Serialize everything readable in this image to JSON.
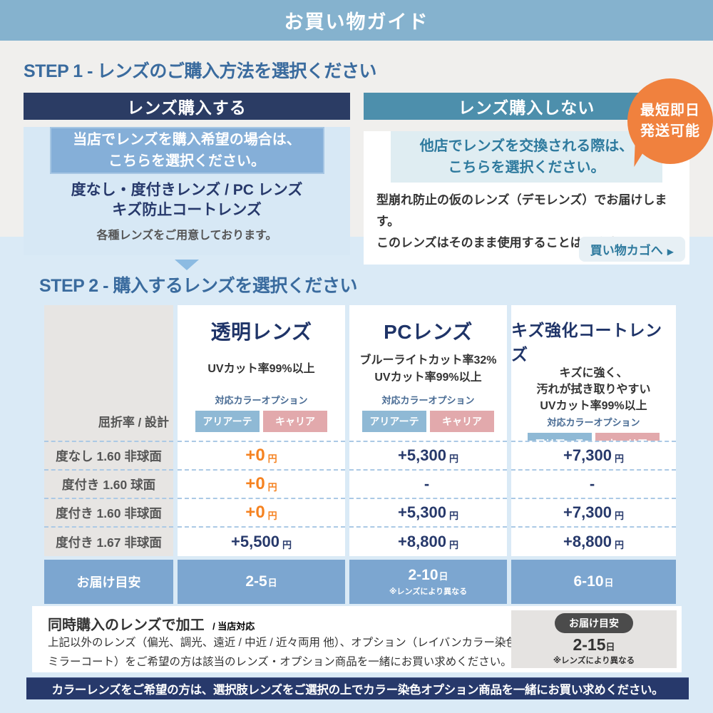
{
  "header": {
    "title": "お買い物ガイド"
  },
  "step1": {
    "heading": "STEP 1 - レンズのご購入方法を選択ください",
    "left": {
      "title": "レンズ購入する",
      "highlight_line1": "当店でレンズを購入希望の場合は、",
      "highlight_line2": "こちらを選択ください。",
      "lens_line1": "度なし・度付きレンズ / PC レンズ",
      "lens_line2": "キズ防止コートレンズ",
      "note": "各種レンズをご用意しております。"
    },
    "right": {
      "title": "レンズ購入しない",
      "highlight_line1": "他店でレンズを交換される際は、",
      "highlight_line2": "こちらを選択ください。",
      "desc_line1": "型崩れ防止の仮のレンズ（デモレンズ）でお届けします。",
      "desc_line2": "このレンズはそのまま使用することはできません。",
      "cart_link": "買い物カゴへ",
      "cart_arrow": "▶"
    },
    "badge": {
      "line1": "最短即日",
      "line2": "発送可能"
    }
  },
  "step2": {
    "heading": "STEP 2 - 購入するレンズを選択ください",
    "table": {
      "corner_label": "屈折率 / 設計",
      "options_label": "対応カラーオプション",
      "chip1": "アリアーテ",
      "chip2": "キャリア",
      "columns": [
        {
          "title": "透明レンズ",
          "desc": [
            "UVカット率99%以上"
          ]
        },
        {
          "title": "PCレンズ",
          "desc": [
            "ブルーライトカット率32%",
            "UVカット率99%以上"
          ]
        },
        {
          "title": "キズ強化コートレンズ",
          "desc": [
            "キズに強く、",
            "汚れが拭き取りやすい",
            "UVカット率99%以上"
          ]
        }
      ],
      "rows": [
        {
          "label": "度なし 1.60 非球面",
          "prices": [
            {
              "v": "+0",
              "u": "円"
            },
            {
              "v": "+5,300",
              "u": "円"
            },
            {
              "v": "+7,300",
              "u": "円"
            }
          ]
        },
        {
          "label": "度付き 1.60  球面",
          "prices": [
            {
              "v": "+0",
              "u": "円"
            },
            {
              "v": "-",
              "u": ""
            },
            {
              "v": "-",
              "u": ""
            }
          ]
        },
        {
          "label": "度付き 1.60 非球面",
          "prices": [
            {
              "v": "+0",
              "u": "円"
            },
            {
              "v": "+5,300",
              "u": "円"
            },
            {
              "v": "+7,300",
              "u": "円"
            }
          ]
        },
        {
          "label": "度付き 1.67 非球面",
          "prices": [
            {
              "v": "+5,500",
              "u": "円"
            },
            {
              "v": "+8,800",
              "u": "円"
            },
            {
              "v": "+8,800",
              "u": "円"
            }
          ]
        }
      ],
      "delivery": {
        "label": "お届け目安",
        "cells": [
          {
            "v": "2-5",
            "u": "日",
            "note": ""
          },
          {
            "v": "2-10",
            "u": "日",
            "note": "※レンズにより異なる"
          },
          {
            "v": "6-10",
            "u": "日",
            "note": ""
          }
        ]
      }
    }
  },
  "info_box": {
    "title": "同時購入のレンズで加工",
    "title_suffix": "/ 当店対応",
    "line1": "上記以外のレンズ（偏光、調光、遠近 / 中近 / 近々両用 他）、オプション（レイバンカラー染色、",
    "line2": "ミラーコート）をご希望の方は該当のレンズ・オプション商品を一緒にお買い求めください。",
    "delivery": {
      "pill": "お届け目安",
      "value": "2-15",
      "unit": "日",
      "note": "※レンズにより異なる"
    }
  },
  "footer_note": "カラーレンズをご希望の方は、選択肢レンズをご選択の上でカラー染色オプション商品を一緒にお買い求めください。",
  "colors": {
    "topbar": "#85B2CE",
    "navy": "#2B3C64",
    "teal": "#4D8FAC",
    "orange_badge": "#F0813E",
    "orange_price": "#F58220",
    "price_navy": "#27396B",
    "step_heading": "#3A6B9E",
    "left_panel_bg": "#D7E8F5",
    "blue_section_bg": "#DAEAF6",
    "chip_blue": "#8FB9D5",
    "chip_pink": "#E2A9AC",
    "delivery_blue": "#7CA6D0",
    "gray_col": "#E7E5E3"
  }
}
